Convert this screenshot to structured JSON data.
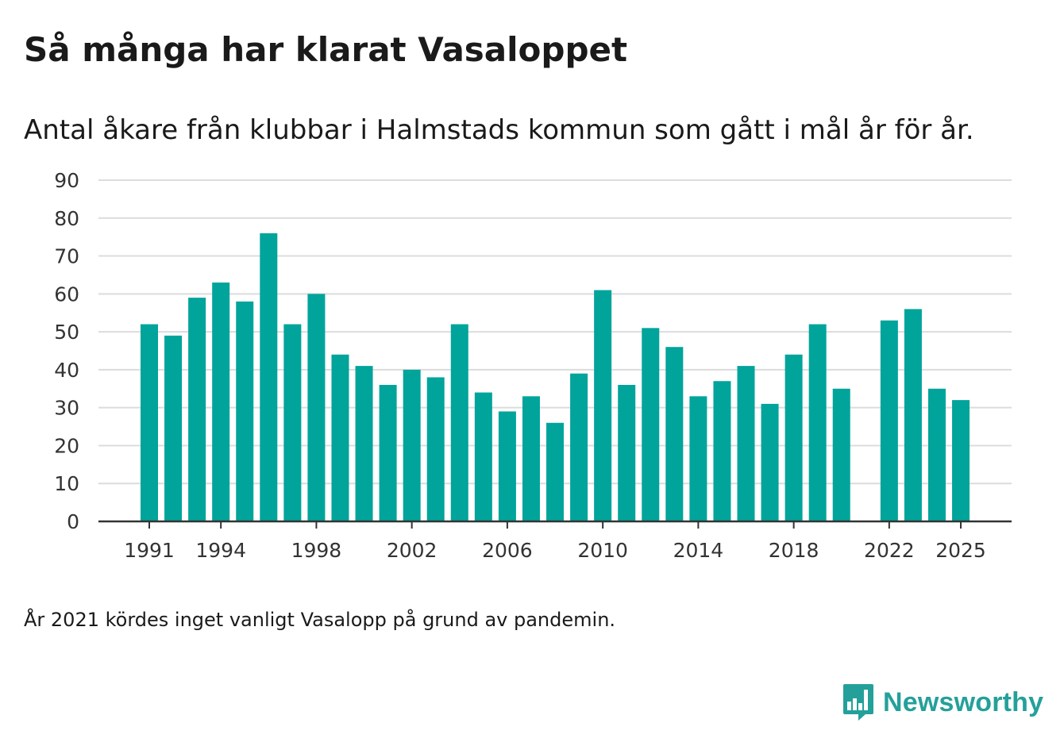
{
  "header": {
    "title": "Så många har klarat Vasaloppet",
    "subtitle": "Antal åkare från klubbar i Halmstads kommun som gått i mål år för år."
  },
  "footnote": "År 2021 kördes inget vanligt Vasalopp på grund av pandemin.",
  "brand": {
    "name": "Newsworthy",
    "color": "#24a09a",
    "icon": "bar-chart-badge-icon"
  },
  "colors": {
    "bar": "#00a49b",
    "grid": "#dcdcdc",
    "axis": "#333333",
    "text": "#333333"
  },
  "chart_data": {
    "type": "bar",
    "title": "Så många har klarat Vasaloppet",
    "subtitle": "Antal åkare från klubbar i Halmstads kommun som gått i mål år för år.",
    "xlabel": "",
    "ylabel": "",
    "ylim": [
      0,
      90
    ],
    "yticks": [
      0,
      10,
      20,
      30,
      40,
      50,
      60,
      70,
      80,
      90
    ],
    "grid": true,
    "legend": "none",
    "categories": [
      1991,
      1992,
      1993,
      1994,
      1995,
      1996,
      1997,
      1998,
      1999,
      2000,
      2001,
      2002,
      2003,
      2004,
      2005,
      2006,
      2007,
      2008,
      2009,
      2010,
      2011,
      2012,
      2013,
      2014,
      2015,
      2016,
      2017,
      2018,
      2019,
      2020,
      2021,
      2022,
      2023,
      2024,
      2025
    ],
    "values": [
      52,
      49,
      59,
      63,
      58,
      76,
      52,
      60,
      44,
      41,
      36,
      40,
      38,
      52,
      34,
      29,
      33,
      26,
      39,
      61,
      36,
      51,
      46,
      33,
      37,
      41,
      31,
      44,
      52,
      35,
      null,
      53,
      56,
      35,
      32
    ],
    "xticks": [
      "1991",
      "1994",
      "1998",
      "2002",
      "2006",
      "2010",
      "2014",
      "2018",
      "2022",
      "2025"
    ]
  }
}
